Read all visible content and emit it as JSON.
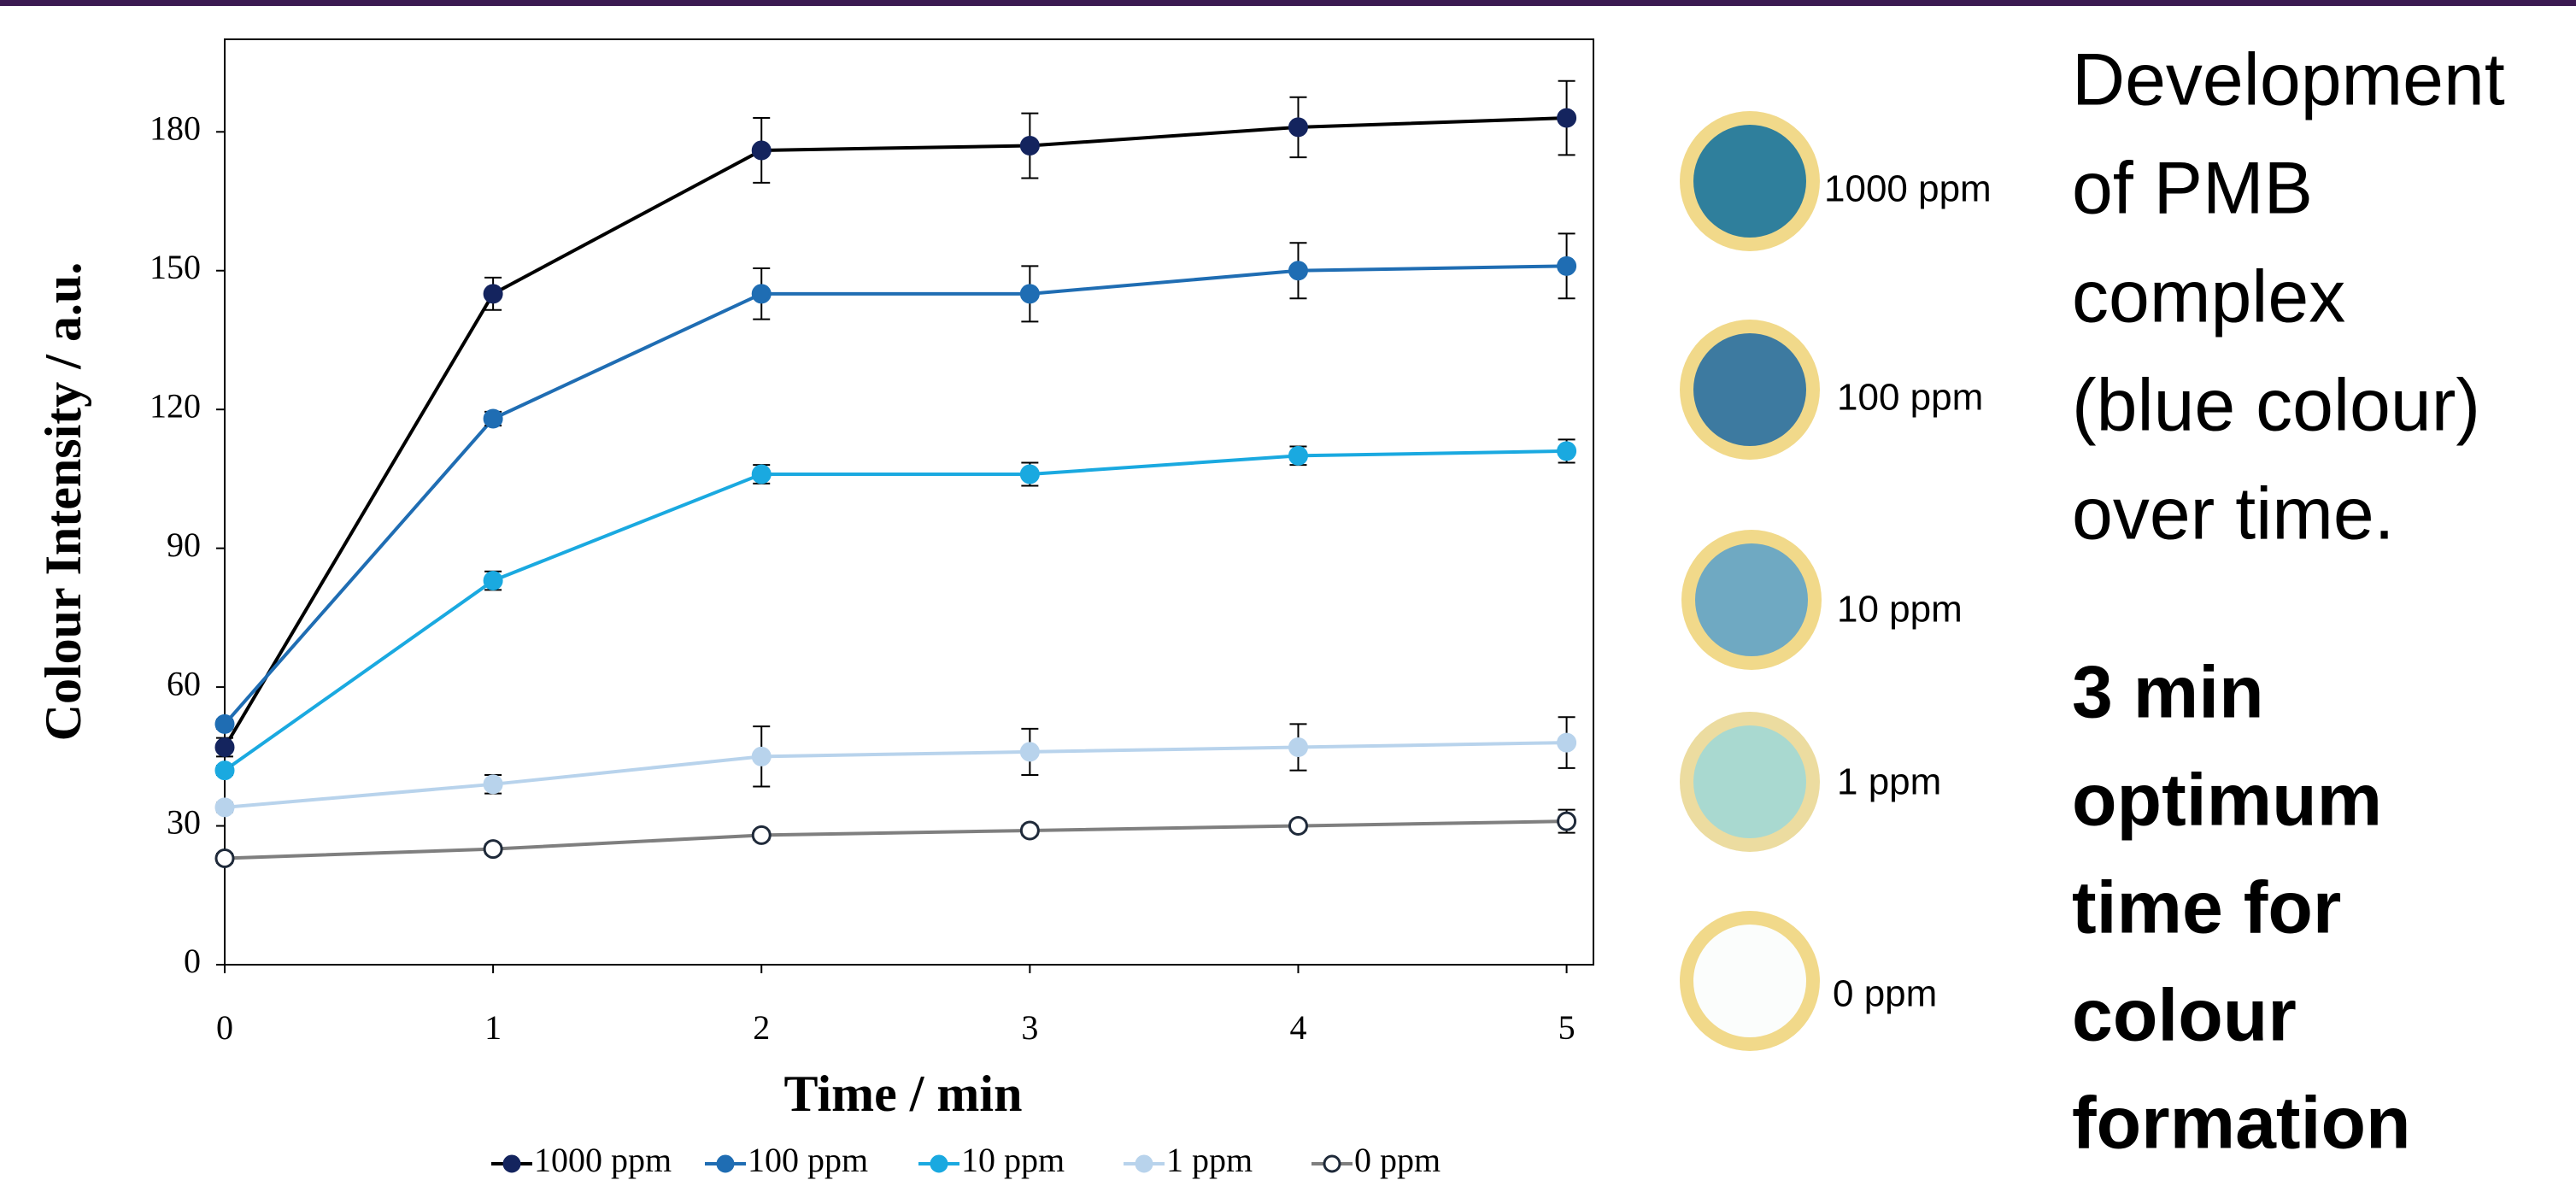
{
  "chart_data": {
    "type": "line",
    "xlabel": "Time / min",
    "ylabel": "Colour Intensity / a.u.",
    "x": [
      0,
      1,
      2,
      3,
      4,
      5
    ],
    "xlim": [
      0,
      5.1
    ],
    "xticks": [
      0,
      1,
      2,
      3,
      4,
      5
    ],
    "ylim": [
      0,
      200
    ],
    "yticks": [
      0,
      30,
      60,
      90,
      120,
      150,
      180
    ],
    "grid": false,
    "legend": "bottom",
    "series": [
      {
        "name": "1000 ppm",
        "color": "#14245e",
        "values": [
          47,
          145,
          176,
          177,
          181,
          183
        ],
        "errors": [
          2,
          3.5,
          7,
          7,
          6.5,
          8
        ]
      },
      {
        "name": "100 ppm",
        "color": "#1f6db3",
        "values": [
          52,
          118,
          145,
          145,
          150,
          151
        ],
        "errors": [
          1,
          1.5,
          5.5,
          6,
          6,
          7
        ]
      },
      {
        "name": "10 ppm",
        "color": "#1aa9e0",
        "values": [
          42,
          83,
          106,
          106,
          110,
          111
        ],
        "errors": [
          1,
          2,
          2,
          2.5,
          2,
          2.5
        ]
      },
      {
        "name": "1 ppm",
        "color": "#b8d3ec",
        "values": [
          34,
          39,
          45,
          46,
          47,
          48
        ],
        "errors": [
          1,
          2,
          6.5,
          5,
          5,
          5.5
        ]
      },
      {
        "name": "0 ppm",
        "color": "#7f7f7f",
        "values": [
          23,
          25,
          28,
          29,
          30,
          31
        ],
        "errors": [
          1,
          1,
          1,
          1,
          1,
          2.5
        ]
      }
    ]
  },
  "spots": [
    "1000 ppm",
    "100 ppm",
    "10 ppm",
    "1 ppm",
    "0 ppm"
  ],
  "description": {
    "lines": [
      "Development",
      "of PMB",
      "complex",
      "(blue colour)",
      "over time."
    ],
    "highlight": [
      "3 min",
      "optimum",
      "time for",
      "colour",
      "formation"
    ]
  }
}
